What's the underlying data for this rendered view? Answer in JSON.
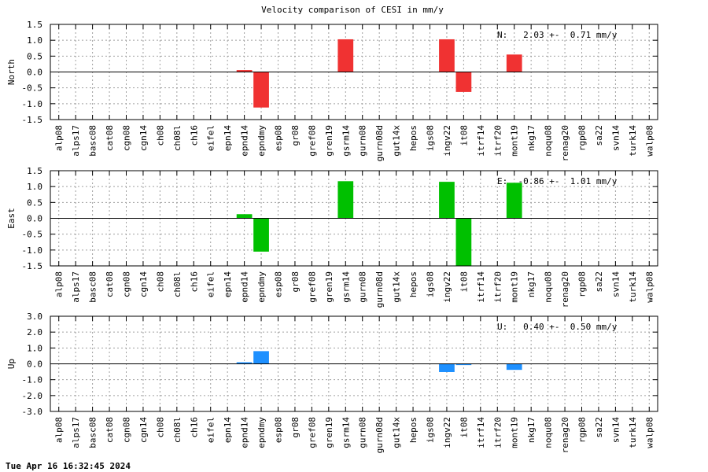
{
  "chart_data": {
    "type": "bar",
    "title": "Velocity comparison of CESI in mm/y",
    "categories": [
      "alp08",
      "alps17",
      "basc08",
      "cat08",
      "cgn08",
      "cgn14",
      "ch08",
      "ch08l",
      "ch16",
      "eifel",
      "epn14",
      "epnd14",
      "epndmy",
      "esp08",
      "gr08",
      "gref08",
      "gren19",
      "gsrm14",
      "gurn08",
      "gurn08d",
      "gut14x",
      "hepos",
      "igs08",
      "ingv22",
      "it08",
      "itrf14",
      "itrf20",
      "mont19",
      "nkg17",
      "noqu08",
      "renag20",
      "rgp08",
      "sa22",
      "svn14",
      "turk14",
      "walp08"
    ],
    "grid": true,
    "panels": [
      {
        "name": "North",
        "ylabel": "North",
        "ylim": [
          -1.5,
          1.5
        ],
        "yticks": [
          "1.5",
          "1.0",
          "0.5",
          "0.0",
          "-0.5",
          "-1.0",
          "-1.5"
        ],
        "color": "#f03232",
        "annotation": "N:   2.03 +-  0.71 mm/y",
        "values": [
          0,
          0,
          0,
          0,
          0,
          0,
          0,
          0,
          0,
          0,
          0,
          0.06,
          -1.12,
          0,
          0,
          0,
          0,
          1.03,
          0,
          0,
          0,
          0,
          0,
          1.03,
          -0.63,
          0,
          0,
          0.55,
          0,
          0,
          0,
          0,
          0,
          0,
          0,
          0
        ]
      },
      {
        "name": "East",
        "ylabel": "East",
        "ylim": [
          -1.5,
          1.5
        ],
        "yticks": [
          "1.5",
          "1.0",
          "0.5",
          "0.0",
          "-0.5",
          "-1.0",
          "-1.5"
        ],
        "color": "#00c000",
        "annotation": "E:  -0.86 +-  1.01 mm/y",
        "values": [
          0,
          0,
          0,
          0,
          0,
          0,
          0,
          0,
          0,
          0,
          0,
          0.13,
          -1.05,
          0,
          0,
          0,
          0,
          1.17,
          0,
          0,
          0,
          0,
          0,
          1.15,
          -1.52,
          0,
          0,
          1.12,
          0,
          0,
          0,
          0,
          0,
          0,
          0,
          0
        ]
      },
      {
        "name": "Up",
        "ylabel": "Up",
        "ylim": [
          -3.0,
          3.0
        ],
        "yticks": [
          "3.0",
          "2.0",
          "1.0",
          "0.0",
          "-1.0",
          "-2.0",
          "-3.0"
        ],
        "color": "#1e90ff",
        "annotation": "U:   0.40 +-  0.50 mm/y",
        "values": [
          0,
          0,
          0,
          0,
          0,
          0,
          0,
          0,
          0,
          0,
          0,
          0.1,
          0.8,
          0,
          0,
          0,
          0,
          0,
          0,
          0,
          0,
          0,
          0,
          -0.52,
          -0.08,
          0,
          0,
          -0.38,
          0,
          0,
          0,
          0,
          0,
          0,
          0,
          0
        ]
      }
    ]
  },
  "footer": "Tue Apr 16 16:32:45 2024"
}
